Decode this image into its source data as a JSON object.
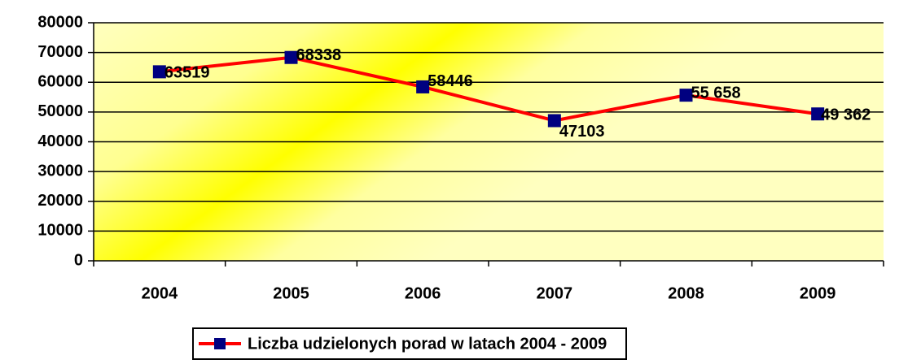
{
  "chart_data": {
    "type": "line",
    "categories": [
      "2004",
      "2005",
      "2006",
      "2007",
      "2008",
      "2009"
    ],
    "series": [
      {
        "name": "Liczba udzielonych porad w latach 2004 - 2009",
        "color": "#ff0000",
        "marker_color": "#000080",
        "values": [
          63519,
          68338,
          58446,
          47103,
          55658,
          49362
        ],
        "value_labels": [
          "63519",
          "68338",
          "58446",
          "47103",
          "55 658",
          "49 362"
        ]
      }
    ],
    "ylim": [
      0,
      80000
    ],
    "yticks": [
      0,
      10000,
      20000,
      30000,
      40000,
      50000,
      60000,
      70000,
      80000
    ],
    "grid": true,
    "legend": "bottom"
  }
}
